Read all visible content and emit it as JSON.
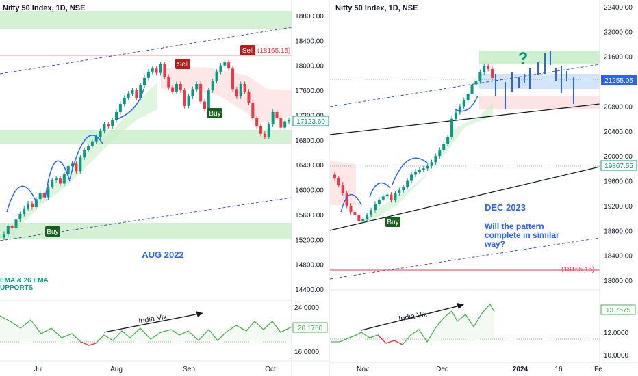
{
  "colors": {
    "up": "#089981",
    "down": "#f23645",
    "projection": "#2962ff",
    "buy_tag": "#1b5e20",
    "sell_tag": "#b71c1c",
    "green_zone": "#c8efc8",
    "red_zone": "#fde1e1",
    "blue_zone": "#cfe2fb",
    "vix": "#4caf50",
    "vix_low": "#f23645"
  },
  "left": {
    "title": "Nifty 50 Index, 1D, NSE",
    "y_ticks": [
      "18800.00",
      "18400.00",
      "18000.00",
      "17600.00",
      "17200.00",
      "16800.00",
      "16400.00",
      "16000.00",
      "15600.00",
      "15200.00",
      "14800.00",
      "14400.00"
    ],
    "y_tick_values": [
      18800,
      18400,
      18000,
      17600,
      17200,
      16800,
      16400,
      16000,
      15600,
      15200,
      14800,
      14400
    ],
    "price_label": "17123.60",
    "price_value": 17123.6,
    "hline_label": "(18165.15)",
    "hline_value": 18165.15,
    "sell_label": "Sell",
    "buy_labels": [
      "Buy",
      "Buy"
    ],
    "annotation_month": "AUG 2022",
    "annotation_ema": "EMA & 26 EMA",
    "annotation_supports": "UPPORTS",
    "vix_label": "India Vix",
    "vix_ticks": [
      "24.0000",
      "16.0000"
    ],
    "vix_value_label": "20.1750",
    "x_ticks": [
      "Jul",
      "Aug",
      "Sep",
      "Oct"
    ]
  },
  "right": {
    "title": "Nifty 50 Index, 1D, NSE",
    "y_ticks": [
      "22400.00",
      "22000.00",
      "21600.00",
      "21200.00",
      "20800.00",
      "20400.00",
      "20000.00",
      "19600.00",
      "19200.00",
      "18800.00",
      "18400.00",
      "18000.00"
    ],
    "y_tick_values": [
      22400,
      22000,
      21600,
      21200,
      20800,
      20400,
      20000,
      19600,
      19200,
      18800,
      18400,
      18000
    ],
    "price_label": "21255.05",
    "price_value": 21255.05,
    "level_label": "19867.55",
    "level_value": 19867.55,
    "hline_label": "(18165.15)",
    "hline_value": 18165.15,
    "buy_label": "Buy",
    "question": "?",
    "annotation_month": "DEC 2023",
    "annotation_line1": "Will the pattern",
    "annotation_line2": "complete in similar",
    "annotation_line3": "way?",
    "vix_label": "India Vix",
    "vix_ticks": [
      "12.0000",
      "10.0000"
    ],
    "vix_value_label": "13.7575",
    "x_ticks": [
      "Nov",
      "Dec",
      "2024",
      "16",
      "Fe"
    ]
  },
  "chart_data": [
    {
      "type": "candlestick",
      "title": "Nifty 50 Index, 1D, NSE",
      "ylim": [
        14400,
        19000
      ],
      "closes": [
        15290,
        15420,
        15380,
        15520,
        15610,
        15700,
        15780,
        15720,
        15850,
        15950,
        15880,
        16050,
        16150,
        16180,
        16100,
        16250,
        16380,
        16420,
        16300,
        16520,
        16640,
        16700,
        16780,
        16850,
        16950,
        17050,
        17020,
        17120,
        17250,
        17380,
        17480,
        17550,
        17600,
        17480,
        17680,
        17800,
        17900,
        17950,
        17880,
        18020,
        17820,
        17650,
        17580,
        17700,
        17600,
        17350,
        17500,
        17620,
        17700,
        17420,
        17300,
        17600,
        17750,
        17900,
        18000,
        18050,
        17950,
        17620,
        17500,
        17700,
        17580,
        17400,
        17150,
        17020,
        16900,
        16850,
        17050,
        17250,
        17150,
        17000,
        17100,
        17123.6
      ]
    },
    {
      "type": "candlestick",
      "title": "Nifty 50 Index, 1D, NSE",
      "ylim": [
        17800,
        22500
      ],
      "closes": [
        19640,
        19540,
        19400,
        19200,
        19100,
        19050,
        18950,
        18980,
        19050,
        19130,
        19230,
        19300,
        19350,
        19380,
        19290,
        19400,
        19450,
        19500,
        19600,
        19700,
        19750,
        19780,
        19800,
        19840,
        19900,
        20000,
        20100,
        20200,
        20300,
        20600,
        20700,
        20800,
        20900,
        21000,
        21150,
        21200,
        21350,
        21450,
        21400,
        21255.05
      ]
    }
  ]
}
